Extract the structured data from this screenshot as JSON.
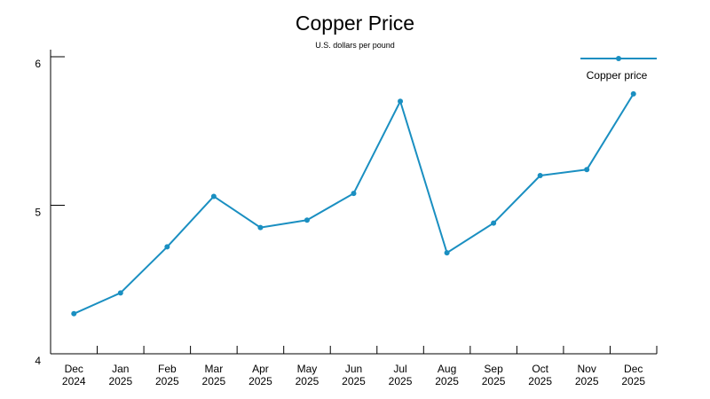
{
  "chart_data": {
    "type": "line",
    "title": "Copper Price",
    "subtitle": "U.S. dollars per pound",
    "categories": [
      [
        "Dec",
        "2024"
      ],
      [
        "Jan",
        "2025"
      ],
      [
        "Feb",
        "2025"
      ],
      [
        "Mar",
        "2025"
      ],
      [
        "Apr",
        "2025"
      ],
      [
        "May",
        "2025"
      ],
      [
        "Jun",
        "2025"
      ],
      [
        "Jul",
        "2025"
      ],
      [
        "Aug",
        "2025"
      ],
      [
        "Sep",
        "2025"
      ],
      [
        "Oct",
        "2025"
      ],
      [
        "Nov",
        "2025"
      ],
      [
        "Dec",
        "2025"
      ]
    ],
    "series": [
      {
        "name": "Copper price",
        "color": "#1a8fc1",
        "values": [
          4.27,
          4.41,
          4.72,
          5.06,
          4.85,
          4.9,
          5.08,
          5.7,
          4.68,
          4.88,
          5.2,
          5.24,
          5.75
        ]
      }
    ],
    "ylim": [
      4,
      6
    ],
    "yticks": [
      4,
      5,
      6
    ],
    "grid": false,
    "legend_position": "top-right"
  }
}
